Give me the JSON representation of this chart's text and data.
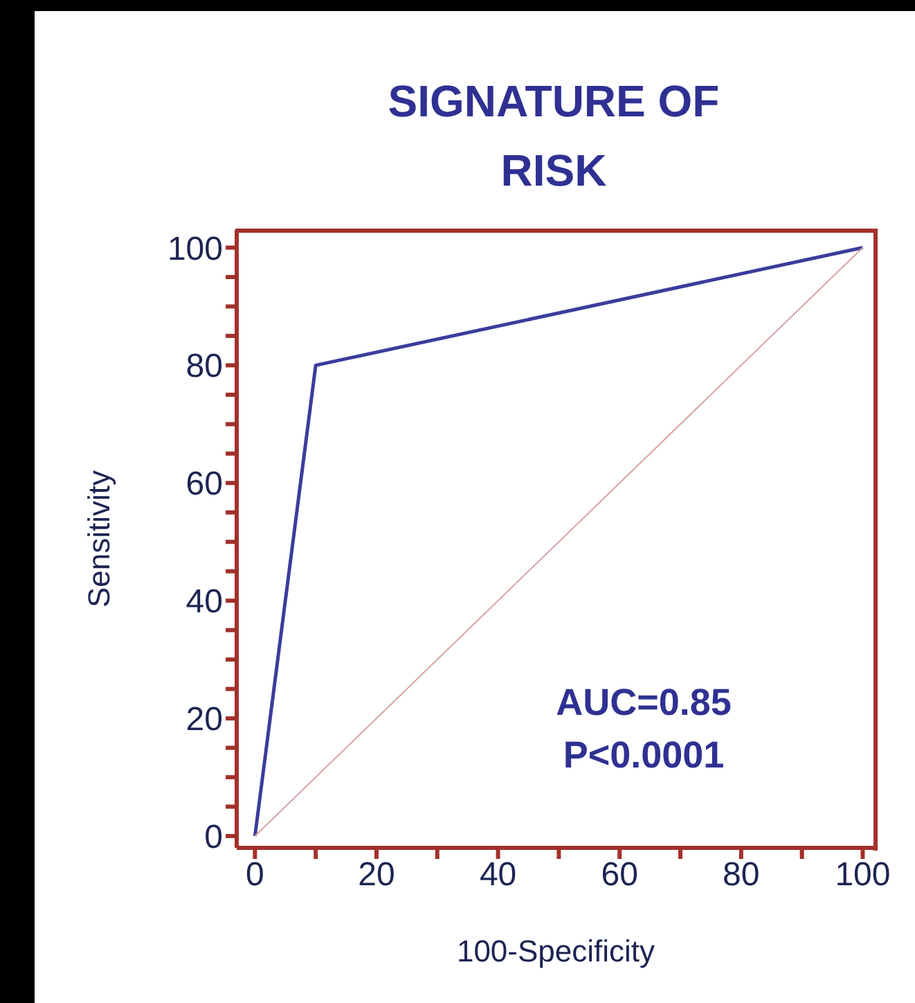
{
  "chart_data": {
    "type": "line",
    "title": "SIGNATURE OF\nRISK",
    "xlabel": "100-Specificity",
    "ylabel": "Sensitivity",
    "annotations": [
      "AUC=0.85",
      "P<0.0001"
    ],
    "series": [
      {
        "color": "#3a3d9c",
        "x": [
          0,
          10,
          100
        ],
        "values": [
          0,
          80,
          100
        ]
      },
      {
        "color": "#d9a3a3",
        "x": [
          0,
          100
        ],
        "values": [
          0,
          100
        ]
      }
    ],
    "xlim": [
      -3,
      102
    ],
    "ylim": [
      -2,
      103
    ],
    "xticks": [
      0,
      {
        "value": 10,
        "label": null
      },
      20,
      {
        "value": 30,
        "label": null
      },
      40,
      {
        "value": 50,
        "label": null
      },
      60,
      {
        "value": 70,
        "label": null
      },
      80,
      {
        "value": 90,
        "label": null
      },
      100
    ],
    "yticks": [
      0,
      {
        "value": 5,
        "label": null
      },
      {
        "value": 10,
        "label": null
      },
      {
        "value": 15,
        "label": null
      },
      20,
      {
        "value": 25,
        "label": null
      },
      {
        "value": 30,
        "label": null
      },
      {
        "value": 35,
        "label": null
      },
      40,
      {
        "value": 45,
        "label": null
      },
      {
        "value": 50,
        "label": null
      },
      {
        "value": 55,
        "label": null
      },
      60,
      {
        "value": 65,
        "label": null
      },
      {
        "value": 70,
        "label": null
      },
      {
        "value": 75,
        "label": null
      },
      80,
      {
        "value": 85,
        "label": null
      },
      {
        "value": 90,
        "label": null
      },
      {
        "value": 95,
        "label": null
      },
      100
    ],
    "marker": "none",
    "line_style": "solid"
  }
}
